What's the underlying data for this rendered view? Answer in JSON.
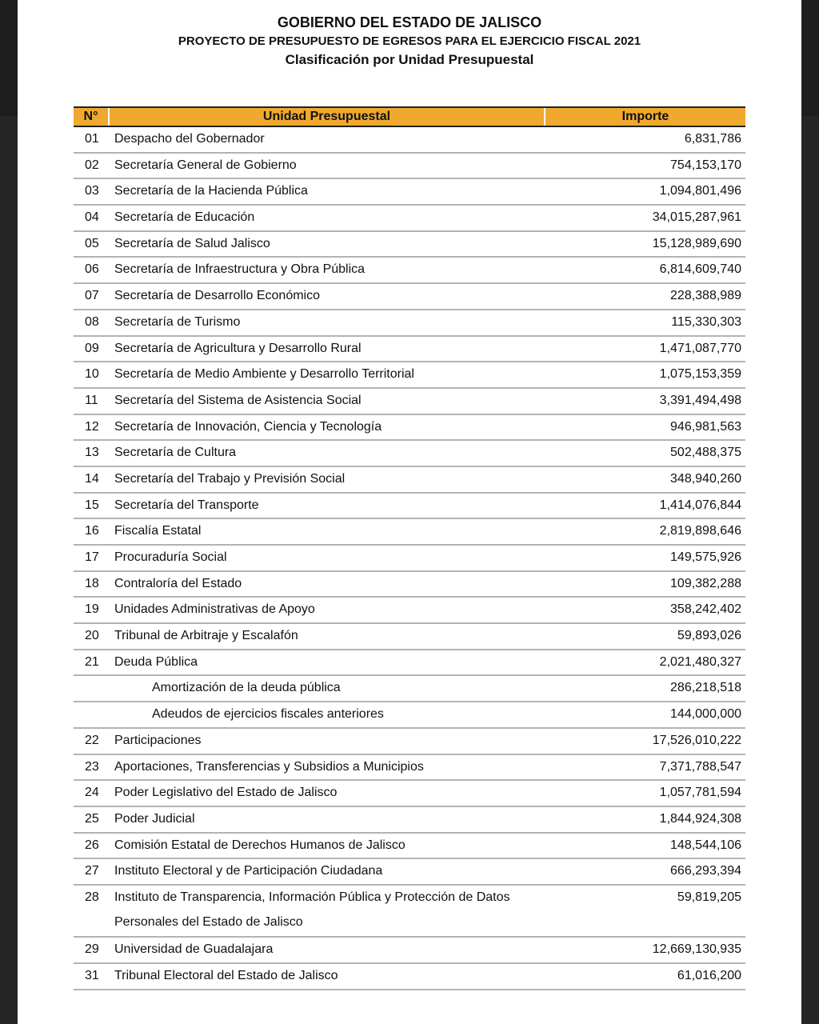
{
  "header": {
    "title": "GOBIERNO DEL ESTADO DE JALISCO",
    "subtitle": "PROYECTO DE PRESUPUESTO DE EGRESOS PARA EL EJERCICIO FISCAL 2021",
    "classification": "Clasificación por Unidad Presupuestal"
  },
  "table": {
    "columns": [
      "N°",
      "Unidad Presupuestal",
      "Importe"
    ],
    "header_color": "#f0a92e",
    "rows": [
      {
        "n": "01",
        "u": "Despacho del Gobernador",
        "i": "6,831,786"
      },
      {
        "n": "02",
        "u": "Secretaría General de Gobierno",
        "i": "754,153,170"
      },
      {
        "n": "03",
        "u": "Secretaría de la Hacienda Pública",
        "i": "1,094,801,496"
      },
      {
        "n": "04",
        "u": "Secretaría de Educación",
        "i": "34,015,287,961"
      },
      {
        "n": "05",
        "u": "Secretaría de Salud Jalisco",
        "i": "15,128,989,690"
      },
      {
        "n": "06",
        "u": "Secretaría de Infraestructura y Obra Pública",
        "i": "6,814,609,740"
      },
      {
        "n": "07",
        "u": "Secretaría de Desarrollo Económico",
        "i": "228,388,989"
      },
      {
        "n": "08",
        "u": "Secretaría de Turismo",
        "i": "115,330,303"
      },
      {
        "n": "09",
        "u": "Secretaría de Agricultura y Desarrollo Rural",
        "i": "1,471,087,770"
      },
      {
        "n": "10",
        "u": "Secretaría de Medio Ambiente y Desarrollo Territorial",
        "i": "1,075,153,359"
      },
      {
        "n": "11",
        "u": "Secretaría del Sistema de Asistencia Social",
        "i": "3,391,494,498"
      },
      {
        "n": "12",
        "u": "Secretaría de Innovación, Ciencia y Tecnología",
        "i": "946,981,563"
      },
      {
        "n": "13",
        "u": "Secretaría de Cultura",
        "i": "502,488,375"
      },
      {
        "n": "14",
        "u": "Secretaría del Trabajo y Previsión Social",
        "i": "348,940,260"
      },
      {
        "n": "15",
        "u": "Secretaría del Transporte",
        "i": "1,414,076,844"
      },
      {
        "n": "16",
        "u": "Fiscalía Estatal",
        "i": "2,819,898,646"
      },
      {
        "n": "17",
        "u": "Procuraduría Social",
        "i": "149,575,926"
      },
      {
        "n": "18",
        "u": "Contraloría del Estado",
        "i": "109,382,288"
      },
      {
        "n": "19",
        "u": "Unidades Administrativas de Apoyo",
        "i": "358,242,402"
      },
      {
        "n": "20",
        "u": "Tribunal de Arbitraje y Escalafón",
        "i": "59,893,026"
      },
      {
        "n": "21",
        "u": "Deuda Pública",
        "i": "2,021,480,327"
      },
      {
        "n": "",
        "u": "Amortización de la deuda pública",
        "i": "286,218,518",
        "sub": true
      },
      {
        "n": "",
        "u": "Adeudos de ejercicios fiscales anteriores",
        "i": "144,000,000",
        "sub": true
      },
      {
        "n": "22",
        "u": "Participaciones",
        "i": "17,526,010,222"
      },
      {
        "n": "23",
        "u": "Aportaciones, Transferencias y Subsidios a Municipios",
        "i": "7,371,788,547"
      },
      {
        "n": "24",
        "u": "Poder Legislativo del Estado de Jalisco",
        "i": "1,057,781,594"
      },
      {
        "n": "25",
        "u": "Poder Judicial",
        "i": "1,844,924,308"
      },
      {
        "n": "26",
        "u": "Comisión Estatal de Derechos Humanos de Jalisco",
        "i": "148,544,106"
      },
      {
        "n": "27",
        "u": "Instituto Electoral y de Participación Ciudadana",
        "i": "666,293,394"
      },
      {
        "n": "28",
        "u": "Instituto de Transparencia, Información Pública y Protección de Datos",
        "u2": "Personales del Estado de Jalisco",
        "i": "59,819,205"
      },
      {
        "n": "29",
        "u": "Universidad de Guadalajara",
        "i": "12,669,130,935"
      },
      {
        "n": "31",
        "u": "Tribunal Electoral del Estado de Jalisco",
        "i": "61,016,200"
      }
    ]
  }
}
